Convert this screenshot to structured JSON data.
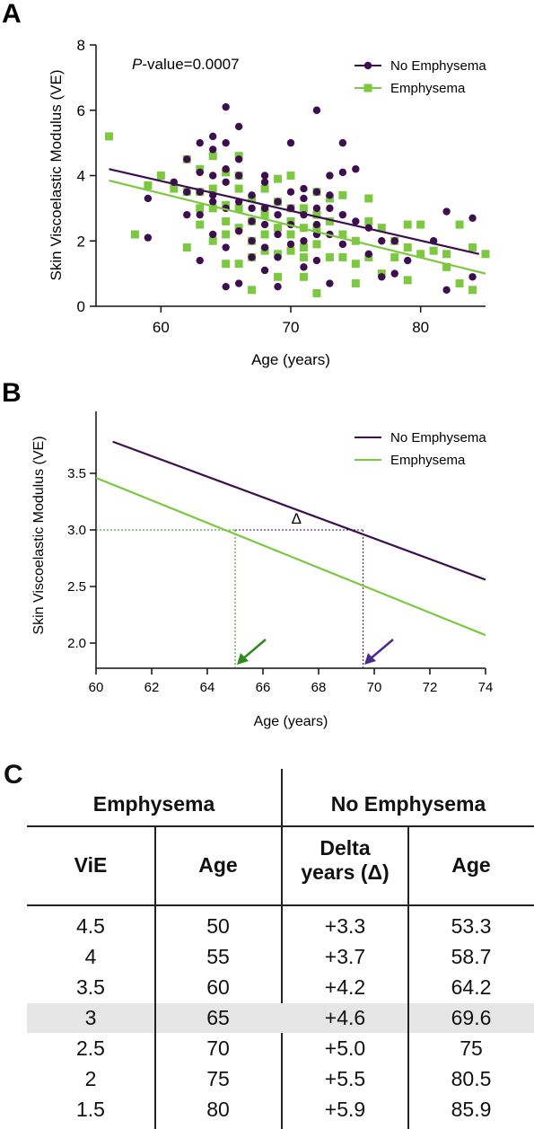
{
  "panelA": {
    "letter": "A",
    "annotation_italic": "P",
    "annotation_rest": "-value=0.0007",
    "legend": [
      "No Emphysema",
      "Emphysema"
    ],
    "colors": {
      "no_emphysema": "#3d0f4f",
      "emphysema": "#7cc840"
    }
  },
  "panelB": {
    "letter": "B",
    "delta_label": "Δ",
    "legend": [
      "No Emphysema",
      "Emphysema"
    ],
    "colors": {
      "no_emphysema": "#3d0f4f",
      "emphysema": "#7cc840",
      "green_arrow": "#2c8a1e",
      "purple_arrow": "#4a2a8f"
    }
  },
  "chart_data": [
    {
      "type": "scatter",
      "xlabel": "Age (years)",
      "ylabel": "Skin Viscoelastic Modulus (VE)",
      "xlim": [
        55,
        85
      ],
      "ylim": [
        0,
        8
      ],
      "xticks": [
        60,
        70,
        80
      ],
      "yticks": [
        0,
        2,
        4,
        6,
        8
      ],
      "grid": false,
      "legend_position": "top-right",
      "annotation": "P-value=0.0007",
      "series": [
        {
          "name": "No Emphysema",
          "marker": "circle",
          "points": [
            [
              59,
              2.1
            ],
            [
              59,
              3.3
            ],
            [
              61,
              3.8
            ],
            [
              62,
              2.8
            ],
            [
              62,
              3.5
            ],
            [
              62,
              4.5
            ],
            [
              63,
              2.8
            ],
            [
              63,
              3.5
            ],
            [
              63,
              4.1
            ],
            [
              63,
              5.0
            ],
            [
              63,
              1.4
            ],
            [
              64,
              3.2
            ],
            [
              64,
              4.0
            ],
            [
              64,
              4.8
            ],
            [
              64,
              5.2
            ],
            [
              64,
              2.2
            ],
            [
              64,
              3.4
            ],
            [
              65,
              6.1
            ],
            [
              65,
              3.0
            ],
            [
              65,
              4.2
            ],
            [
              65,
              5.0
            ],
            [
              65,
              0.6
            ],
            [
              65,
              1.8
            ],
            [
              65,
              3.8
            ],
            [
              66,
              5.5
            ],
            [
              66,
              4.5
            ],
            [
              66,
              3.2
            ],
            [
              66,
              0.7
            ],
            [
              66,
              2.3
            ],
            [
              66,
              4.0
            ],
            [
              67,
              3.0
            ],
            [
              67,
              2.6
            ],
            [
              67,
              1.5
            ],
            [
              67,
              3.4
            ],
            [
              67,
              2.0
            ],
            [
              68,
              3.8
            ],
            [
              68,
              2.5
            ],
            [
              68,
              1.8
            ],
            [
              68,
              3.0
            ],
            [
              68,
              4.0
            ],
            [
              68,
              1.1
            ],
            [
              69,
              2.8
            ],
            [
              69,
              3.2
            ],
            [
              69,
              2.2
            ],
            [
              69,
              1.5
            ],
            [
              69,
              0.6
            ],
            [
              70,
              5.0
            ],
            [
              70,
              3.0
            ],
            [
              70,
              2.5
            ],
            [
              70,
              1.9
            ],
            [
              70,
              3.5
            ],
            [
              71,
              3.6
            ],
            [
              71,
              2.8
            ],
            [
              71,
              2.0
            ],
            [
              71,
              3.3
            ],
            [
              71,
              1.2
            ],
            [
              72,
              6.0
            ],
            [
              72,
              3.5
            ],
            [
              72,
              2.5
            ],
            [
              72,
              1.4
            ],
            [
              72,
              3.0
            ],
            [
              72,
              2.2
            ],
            [
              73,
              4.0
            ],
            [
              73,
              3.0
            ],
            [
              73,
              2.2
            ],
            [
              73,
              0.7
            ],
            [
              73,
              3.4
            ],
            [
              74,
              5.0
            ],
            [
              74,
              4.1
            ],
            [
              74,
              2.8
            ],
            [
              74,
              1.9
            ],
            [
              75,
              4.2
            ],
            [
              75,
              2.6
            ],
            [
              76,
              1.6
            ],
            [
              76,
              2.4
            ],
            [
              77,
              0.9
            ],
            [
              77,
              2.0
            ],
            [
              78,
              1.0
            ],
            [
              78,
              2.0
            ],
            [
              79,
              1.4
            ],
            [
              81,
              2.0
            ],
            [
              82,
              2.9
            ],
            [
              82,
              0.5
            ],
            [
              84,
              2.7
            ],
            [
              84,
              0.9
            ]
          ]
        },
        {
          "name": "Emphysema",
          "marker": "square",
          "points": [
            [
              56,
              5.2
            ],
            [
              58,
              2.2
            ],
            [
              59,
              3.7
            ],
            [
              60,
              4.0
            ],
            [
              61,
              3.6
            ],
            [
              62,
              3.5
            ],
            [
              62,
              1.8
            ],
            [
              62,
              4.5
            ],
            [
              63,
              3.5
            ],
            [
              63,
              2.5
            ],
            [
              63,
              4.2
            ],
            [
              63,
              3.0
            ],
            [
              64,
              3.0
            ],
            [
              64,
              2.0
            ],
            [
              64,
              4.6
            ],
            [
              64,
              3.6
            ],
            [
              65,
              2.2
            ],
            [
              65,
              3.1
            ],
            [
              65,
              4.1
            ],
            [
              65,
              1.3
            ],
            [
              65,
              2.6
            ],
            [
              66,
              2.4
            ],
            [
              66,
              3.6
            ],
            [
              66,
              4.6
            ],
            [
              66,
              1.3
            ],
            [
              66,
              3.0
            ],
            [
              66,
              4.0
            ],
            [
              67,
              2.0
            ],
            [
              67,
              3.3
            ],
            [
              67,
              2.6
            ],
            [
              67,
              0.5
            ],
            [
              67,
              1.5
            ],
            [
              68,
              2.8
            ],
            [
              68,
              2.2
            ],
            [
              68,
              3.6
            ],
            [
              68,
              1.7
            ],
            [
              68,
              3.0
            ],
            [
              69,
              2.4
            ],
            [
              69,
              3.2
            ],
            [
              69,
              1.6
            ],
            [
              69,
              0.9
            ],
            [
              69,
              3.9
            ],
            [
              70,
              2.2
            ],
            [
              70,
              3.0
            ],
            [
              70,
              2.6
            ],
            [
              70,
              1.7
            ],
            [
              70,
              4.0
            ],
            [
              71,
              2.4
            ],
            [
              71,
              3.0
            ],
            [
              71,
              1.8
            ],
            [
              71,
              0.9
            ],
            [
              71,
              1.5
            ],
            [
              72,
              2.8
            ],
            [
              72,
              1.9
            ],
            [
              72,
              3.5
            ],
            [
              72,
              0.4
            ],
            [
              72,
              2.4
            ],
            [
              73,
              1.5
            ],
            [
              73,
              2.6
            ],
            [
              73,
              3.3
            ],
            [
              74,
              1.5
            ],
            [
              74,
              2.2
            ],
            [
              74,
              3.4
            ],
            [
              75,
              2.0
            ],
            [
              75,
              0.7
            ],
            [
              75,
              1.3
            ],
            [
              76,
              1.5
            ],
            [
              76,
              3.3
            ],
            [
              76,
              2.6
            ],
            [
              77,
              2.4
            ],
            [
              77,
              1.0
            ],
            [
              78,
              2.0
            ],
            [
              78,
              1.5
            ],
            [
              79,
              2.5
            ],
            [
              79,
              0.8
            ],
            [
              79,
              1.8
            ],
            [
              80,
              2.5
            ],
            [
              80,
              1.6
            ],
            [
              81,
              1.7
            ],
            [
              82,
              1.2
            ],
            [
              82,
              1.6
            ],
            [
              83,
              2.5
            ],
            [
              83,
              0.7
            ],
            [
              84,
              1.8
            ],
            [
              84,
              0.5
            ],
            [
              85,
              1.6
            ]
          ]
        }
      ],
      "fit_lines": [
        {
          "name": "No Emphysema",
          "x": [
            56,
            84.5
          ],
          "y": [
            4.2,
            1.6
          ]
        },
        {
          "name": "Emphysema",
          "x": [
            56,
            85
          ],
          "y": [
            3.85,
            1.0
          ]
        }
      ]
    },
    {
      "type": "line",
      "xlabel": "Age (years)",
      "ylabel": "Skin Viscoelastic Modulus (VE)",
      "xlim": [
        60,
        74
      ],
      "ylim": [
        1.8,
        3.8
      ],
      "xticks": [
        60,
        62,
        64,
        66,
        68,
        70,
        72,
        74
      ],
      "yticks": [
        2.0,
        2.5,
        3.0,
        3.5
      ],
      "ytick_labels": [
        "2.0",
        "2.5",
        "3.0",
        "3.5"
      ],
      "grid": false,
      "legend_position": "top-right",
      "series": [
        {
          "name": "No Emphysema",
          "x": [
            60.6,
            74
          ],
          "y": [
            3.78,
            2.56
          ]
        },
        {
          "name": "Emphysema",
          "x": [
            60,
            74
          ],
          "y": [
            3.46,
            2.07
          ]
        }
      ],
      "reference": {
        "y_level": 3.0,
        "x_emphysema": 65.0,
        "x_no_emphysema": 69.6,
        "delta_label": "Δ"
      }
    },
    {
      "type": "table",
      "letter": "C",
      "group_headers": [
        "Emphysema",
        "No Emphysema"
      ],
      "columns": [
        "ViE",
        "Age",
        "Delta years (Δ)",
        "Age"
      ],
      "column_header_lines": [
        [
          "ViE"
        ],
        [
          "Age"
        ],
        [
          "Delta",
          "years (Δ)"
        ],
        [
          "Age"
        ]
      ],
      "highlighted_row_index": 3,
      "rows": [
        [
          "4.5",
          "50",
          "+3.3",
          "53.3"
        ],
        [
          "4",
          "55",
          "+3.7",
          "58.7"
        ],
        [
          "3.5",
          "60",
          "+4.2",
          "64.2"
        ],
        [
          "3",
          "65",
          "+4.6",
          "69.6"
        ],
        [
          "2.5",
          "70",
          "+5.0",
          "75"
        ],
        [
          "2",
          "75",
          "+5.5",
          "80.5"
        ],
        [
          "1.5",
          "80",
          "+5.9",
          "85.9"
        ]
      ]
    }
  ]
}
